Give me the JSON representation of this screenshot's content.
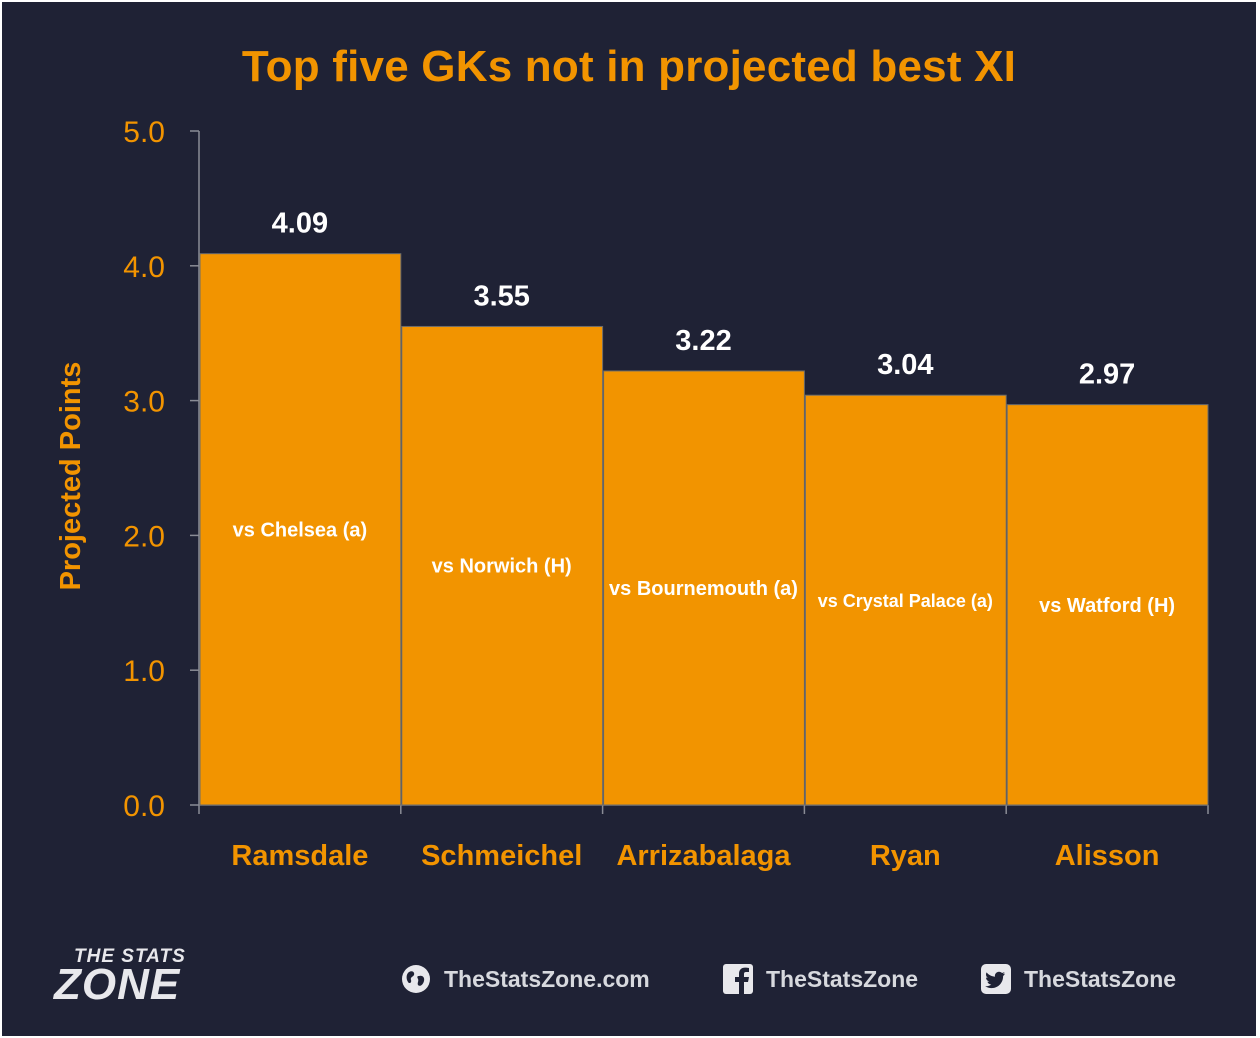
{
  "chart_data": {
    "type": "bar",
    "title": "Top five GKs not in projected best XI",
    "xlabel": "",
    "ylabel": "Projected Points",
    "ylim": [
      0,
      5.0
    ],
    "yticks": [
      "0.0",
      "1.0",
      "2.0",
      "3.0",
      "4.0",
      "5.0"
    ],
    "categories": [
      "Ramsdale",
      "Schmeichel",
      "Arrizabalaga",
      "Ryan",
      "Alisson"
    ],
    "values": [
      4.09,
      3.55,
      3.22,
      3.04,
      2.97
    ],
    "value_labels": [
      "4.09",
      "3.55",
      "3.22",
      "3.04",
      "2.97"
    ],
    "fixtures": [
      "vs Chelsea (a)",
      "vs Norwich (H)",
      "vs Bournemouth (a)",
      "vs Crystal Palace (a)",
      "vs Watford (H)"
    ],
    "grid": false,
    "legend": "none",
    "colors": {
      "background": "#1f2235",
      "bar": "#f29400",
      "bar_border": "#6b6b6b",
      "axis_text": "#f29400",
      "value_text": "#ffffff"
    }
  },
  "footer": {
    "logo_top": "THE STATS",
    "logo_bottom": "ZONE",
    "website": "TheStatsZone.com",
    "facebook": "TheStatsZone",
    "twitter": "TheStatsZone"
  }
}
